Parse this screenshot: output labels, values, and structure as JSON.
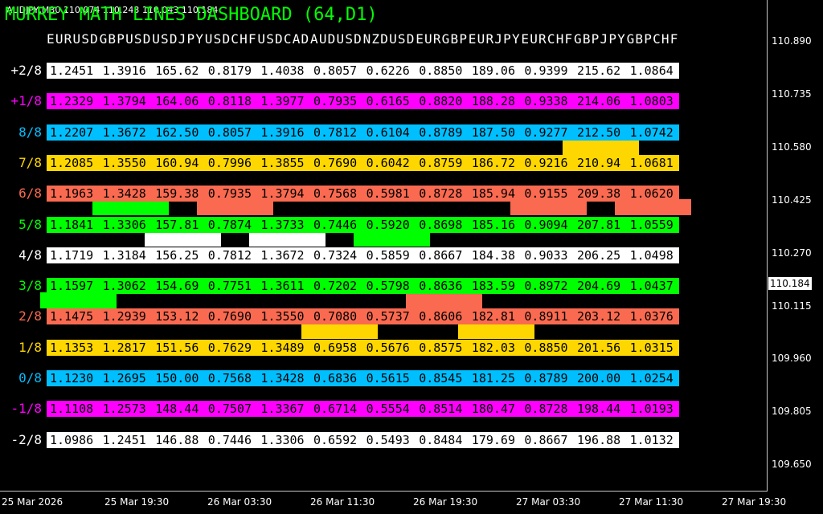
{
  "header": {
    "symbol_info": "AUDJPY,M30 110.074 110.243 110.043 110.184",
    "title": "MURREY MATH LINES DASHBOARD (64,D1)"
  },
  "dashboard": {
    "columns": [
      "EURUSD",
      "GBPUSD",
      "USDJPY",
      "USDCHF",
      "USDCAD",
      "AUDUSD",
      "NZDUSD",
      "EURGBP",
      "EURJPY",
      "EURCHF",
      "GBPJPY",
      "GBPCHF"
    ],
    "rows": [
      {
        "label": "+2/8",
        "color": "#ffffff",
        "values": [
          "1.2451",
          "1.3916",
          "165.62",
          "0.8179",
          "1.4038",
          "0.8057",
          "0.6226",
          "0.8850",
          "189.06",
          "0.9399",
          "215.62",
          "1.0864"
        ]
      },
      {
        "label": "+1/8",
        "color": "#ff00ff",
        "values": [
          "1.2329",
          "1.3794",
          "164.06",
          "0.8118",
          "1.3977",
          "0.7935",
          "0.6165",
          "0.8820",
          "188.28",
          "0.9338",
          "214.06",
          "1.0803"
        ]
      },
      {
        "label": "8/8",
        "color": "#00bfff",
        "values": [
          "1.2207",
          "1.3672",
          "162.50",
          "0.8057",
          "1.3916",
          "0.7812",
          "0.6104",
          "0.8789",
          "187.50",
          "0.9277",
          "212.50",
          "1.0742"
        ]
      },
      {
        "label": "7/8",
        "color": "#ffd700",
        "values": [
          "1.2085",
          "1.3550",
          "160.94",
          "0.7996",
          "1.3855",
          "0.7690",
          "0.6042",
          "0.8759",
          "186.72",
          "0.9216",
          "210.94",
          "1.0681"
        ]
      },
      {
        "label": "6/8",
        "color": "#fa6a50",
        "values": [
          "1.1963",
          "1.3428",
          "159.38",
          "0.7935",
          "1.3794",
          "0.7568",
          "0.5981",
          "0.8728",
          "185.94",
          "0.9155",
          "209.38",
          "1.0620"
        ]
      },
      {
        "label": "5/8",
        "color": "#00ff00",
        "values": [
          "1.1841",
          "1.3306",
          "157.81",
          "0.7874",
          "1.3733",
          "0.7446",
          "0.5920",
          "0.8698",
          "185.16",
          "0.9094",
          "207.81",
          "1.0559"
        ]
      },
      {
        "label": "4/8",
        "color": "#ffffff",
        "values": [
          "1.1719",
          "1.3184",
          "156.25",
          "0.7812",
          "1.3672",
          "0.7324",
          "0.5859",
          "0.8667",
          "184.38",
          "0.9033",
          "206.25",
          "1.0498"
        ]
      },
      {
        "label": "3/8",
        "color": "#00ff00",
        "values": [
          "1.1597",
          "1.3062",
          "154.69",
          "0.7751",
          "1.3611",
          "0.7202",
          "0.5798",
          "0.8636",
          "183.59",
          "0.8972",
          "204.69",
          "1.0437"
        ]
      },
      {
        "label": "2/8",
        "color": "#fa6a50",
        "values": [
          "1.1475",
          "1.2939",
          "153.12",
          "0.7690",
          "1.3550",
          "0.7080",
          "0.5737",
          "0.8606",
          "182.81",
          "0.8911",
          "203.12",
          "1.0376"
        ]
      },
      {
        "label": "1/8",
        "color": "#ffd700",
        "values": [
          "1.1353",
          "1.2817",
          "151.56",
          "0.7629",
          "1.3489",
          "0.6958",
          "0.5676",
          "0.8575",
          "182.03",
          "0.8850",
          "201.56",
          "1.0315"
        ]
      },
      {
        "label": "0/8",
        "color": "#00bfff",
        "values": [
          "1.1230",
          "1.2695",
          "150.00",
          "0.7568",
          "1.3428",
          "0.6836",
          "0.5615",
          "0.8545",
          "181.25",
          "0.8789",
          "200.00",
          "1.0254"
        ]
      },
      {
        "label": "-1/8",
        "color": "#ff00ff",
        "values": [
          "1.1108",
          "1.2573",
          "148.44",
          "0.7507",
          "1.3367",
          "0.6714",
          "0.5554",
          "0.8514",
          "180.47",
          "0.8728",
          "198.44",
          "1.0193"
        ]
      },
      {
        "label": "-2/8",
        "color": "#ffffff",
        "values": [
          "1.0986",
          "1.2451",
          "146.88",
          "0.7446",
          "1.3306",
          "0.6592",
          "0.5493",
          "0.8484",
          "179.69",
          "0.8667",
          "196.88",
          "1.0132"
        ]
      }
    ]
  },
  "price_axis": {
    "labels": [
      "110.890",
      "110.735",
      "110.580",
      "110.425",
      "110.270",
      "110.115",
      "109.960",
      "109.805",
      "109.650"
    ],
    "current": "110.184"
  },
  "time_axis": {
    "labels": [
      "25 Mar 2026",
      "25 Mar 19:30",
      "26 Mar 03:30",
      "26 Mar 11:30",
      "26 Mar 19:30",
      "27 Mar 03:30",
      "27 Mar 11:30",
      "27 Mar 19:30"
    ]
  }
}
